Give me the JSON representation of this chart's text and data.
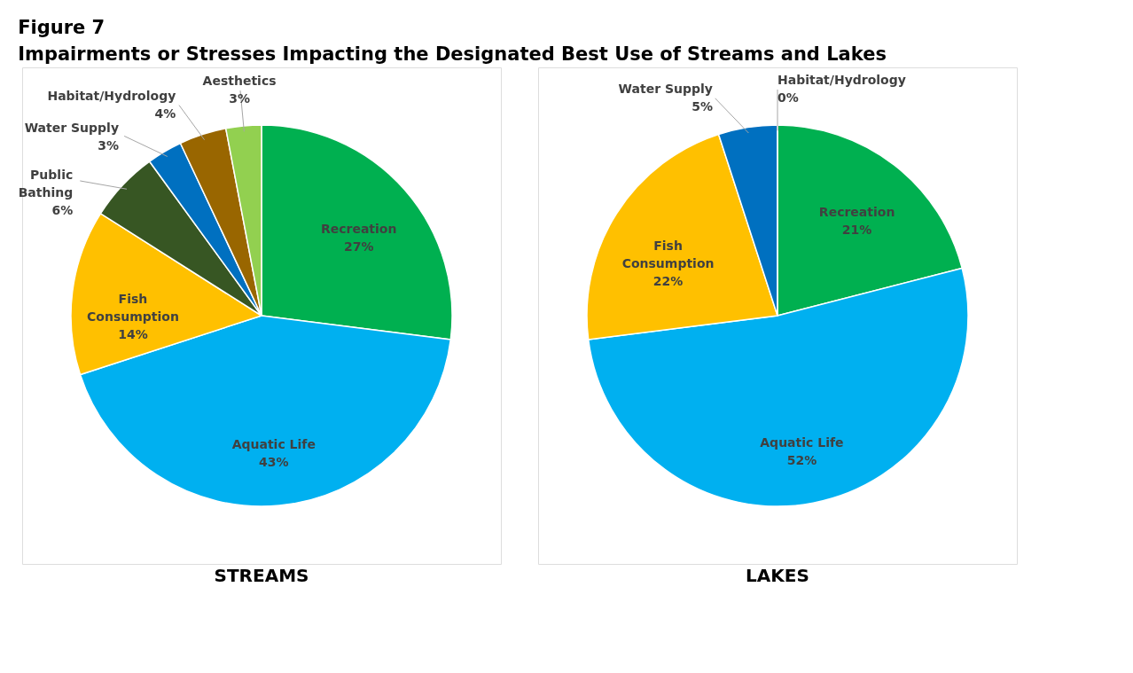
{
  "chart_data": [
    {
      "type": "pie",
      "title": "STREAMS",
      "annotations": [
        "Figure 7",
        "Impairments or Stresses Impacting the Designated Best Use of Streams and Lakes"
      ],
      "categories": [
        "Recreation",
        "Aquatic Life",
        "Fish Consumption",
        "Public Bathing",
        "Water Supply",
        "Habitat/Hydrology",
        "Aesthetics"
      ],
      "values": [
        27,
        43,
        14,
        6,
        3,
        4,
        3
      ],
      "colors": [
        "#00b050",
        "#00b0f0",
        "#ffc000",
        "#375623",
        "#0070c0",
        "#996600",
        "#92d050"
      ],
      "value_labels": [
        "27%",
        "43%",
        "14%",
        "6%",
        "3%",
        "4%",
        "3%"
      ],
      "legend": false
    },
    {
      "type": "pie",
      "title": "LAKES",
      "categories": [
        "Recreation",
        "Aquatic Life",
        "Fish Consumption",
        "Water Supply",
        "Habitat/Hydrology"
      ],
      "values": [
        21,
        52,
        22,
        5,
        0
      ],
      "colors": [
        "#00b050",
        "#00b0f0",
        "#ffc000",
        "#0070c0",
        "#92d050"
      ],
      "value_labels": [
        "21%",
        "52%",
        "22%",
        "5%",
        "0%"
      ],
      "legend": false
    }
  ]
}
